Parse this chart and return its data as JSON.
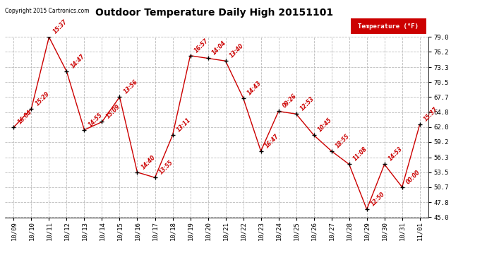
{
  "title": "Outdoor Temperature Daily High 20151101",
  "copyright": "Copyright 2015 Cartronics.com",
  "legend_label": "Temperature (°F)",
  "x_labels": [
    "10/09",
    "10/10",
    "10/11",
    "10/12",
    "10/13",
    "10/14",
    "10/15",
    "10/16",
    "10/17",
    "10/18",
    "10/19",
    "10/20",
    "10/21",
    "10/22",
    "10/23",
    "10/24",
    "10/25",
    "10/26",
    "10/27",
    "10/28",
    "10/29",
    "10/30",
    "10/31",
    "11/01"
  ],
  "y_values": [
    62.0,
    65.5,
    79.0,
    72.5,
    61.5,
    63.0,
    67.7,
    53.5,
    52.5,
    60.5,
    75.5,
    75.0,
    74.5,
    67.5,
    57.5,
    65.0,
    64.5,
    60.5,
    57.5,
    55.0,
    46.5,
    55.0,
    50.7,
    62.5
  ],
  "annotations": [
    "16:04",
    "15:29",
    "15:37",
    "14:47",
    "14:55",
    "15:09",
    "13:56",
    "14:40",
    "13:55",
    "13:11",
    "16:57",
    "14:04",
    "13:40",
    "14:43",
    "16:47",
    "09:26",
    "12:53",
    "10:45",
    "18:55",
    "11:08",
    "12:50",
    "14:53",
    "00:00",
    "15:37"
  ],
  "line_color": "#cc0000",
  "marker_color": "#000000",
  "legend_bg": "#cc0000",
  "legend_text_color": "#ffffff",
  "bg_color": "#ffffff",
  "plot_bg": "#ffffff",
  "grid_color": "#bbbbbb",
  "ylim": [
    45.0,
    79.0
  ],
  "yticks": [
    45.0,
    47.8,
    50.7,
    53.5,
    56.3,
    59.2,
    62.0,
    64.8,
    67.7,
    70.5,
    73.3,
    76.2,
    79.0
  ],
  "title_fontsize": 10,
  "annotation_fontsize": 5.5,
  "axis_fontsize": 6.5,
  "copyright_fontsize": 5.5
}
